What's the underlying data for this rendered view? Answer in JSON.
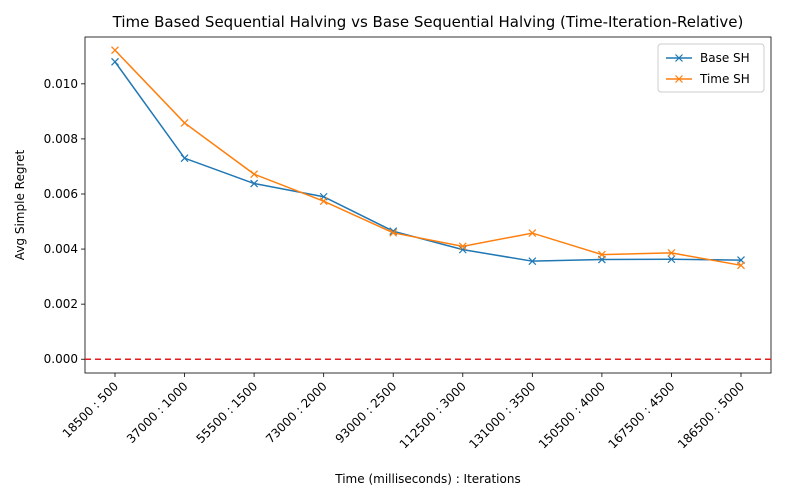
{
  "chart_data": {
    "type": "line",
    "title": "Time Based Sequential Halving vs Base Sequential Halving (Time-Iteration-Relative)",
    "xlabel": "Time (milliseconds) : Iterations",
    "ylabel": "Avg Simple Regret",
    "categories": [
      "18500 : 500",
      "37000 : 1000",
      "55500 : 1500",
      "73000 : 2000",
      "93000 : 2500",
      "112500 : 3000",
      "131000 : 3500",
      "150500 : 4000",
      "167500 : 4500",
      "186500 : 5000"
    ],
    "x": [
      18500,
      37000,
      55500,
      73000,
      93000,
      112500,
      131000,
      150500,
      167500,
      186500
    ],
    "ylim": [
      -0.0005,
      0.0117
    ],
    "yticks": [
      0.0,
      0.002,
      0.004,
      0.006,
      0.008,
      0.01
    ],
    "ytick_labels": [
      "0.000",
      "0.002",
      "0.004",
      "0.006",
      "0.008",
      "0.010"
    ],
    "grid": false,
    "legend_position": "top-right",
    "series": [
      {
        "name": "Base SH",
        "color": "#1f77b4",
        "marker": "x",
        "values": [
          0.0108,
          0.0073,
          0.00638,
          0.0059,
          0.00465,
          0.00398,
          0.00356,
          0.00362,
          0.00363,
          0.0036
        ]
      },
      {
        "name": "Time SH",
        "color": "#ff7f0e",
        "marker": "x",
        "values": [
          0.01122,
          0.00858,
          0.00672,
          0.00574,
          0.00459,
          0.0041,
          0.00458,
          0.0038,
          0.00386,
          0.00341
        ]
      }
    ],
    "reference_line": {
      "y": 0.0,
      "color": "#e41a1c",
      "style": "dashed"
    }
  }
}
